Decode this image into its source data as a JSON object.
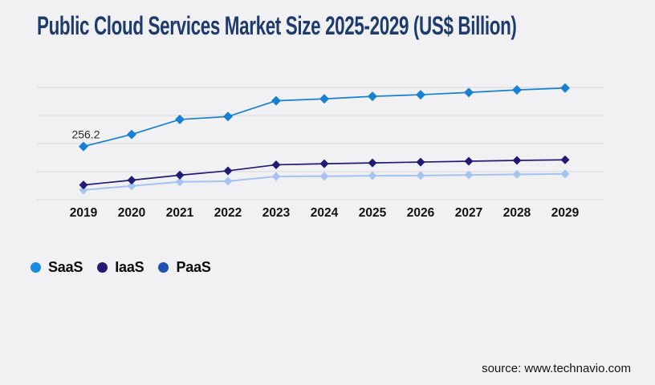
{
  "page": {
    "background": "#f1f1f4",
    "grid_color": "#d8d8db"
  },
  "title": {
    "text": "Public Cloud Services Market Size 2025-2029 (US$ Billion)",
    "color": "#1e3c6b"
  },
  "source": {
    "text": "source: www.technavio.com"
  },
  "chart_data": {
    "type": "line",
    "title": "Public Cloud Services Market Size 2025-2029 (US$ Billion)",
    "x": [
      "2019",
      "2020",
      "2021",
      "2022",
      "2023",
      "2024",
      "2025",
      "2026",
      "2027",
      "2028",
      "2029"
    ],
    "series": [
      {
        "name": "SaaS",
        "line_color": "#1780d2",
        "legend_color": "#1a8ce0",
        "marker": "diamond",
        "values": [
          256.2,
          314,
          386,
          400,
          476,
          485,
          497,
          505,
          516,
          528,
          537
        ]
      },
      {
        "name": "IaaS",
        "line_color": "#201c74",
        "legend_color": "#221a78",
        "marker": "diamond",
        "values": [
          71,
          94,
          118,
          139,
          168,
          173,
          177,
          181,
          185,
          189,
          192
        ]
      },
      {
        "name": "PaaS",
        "line_color": "#a6c4ef",
        "legend_color": "#2051b0",
        "marker": "diamond",
        "values": [
          47,
          66,
          86,
          89,
          112,
          113,
          115,
          116,
          119,
          122,
          124
        ]
      }
    ],
    "annotations": [
      {
        "series": "SaaS",
        "x": "2019",
        "text": "256.2"
      }
    ],
    "ylim": [
      0,
      540
    ],
    "y_axis_labels": false,
    "grid": "horizontal",
    "gridline_count": 5,
    "legend_position": "bottom-left"
  }
}
